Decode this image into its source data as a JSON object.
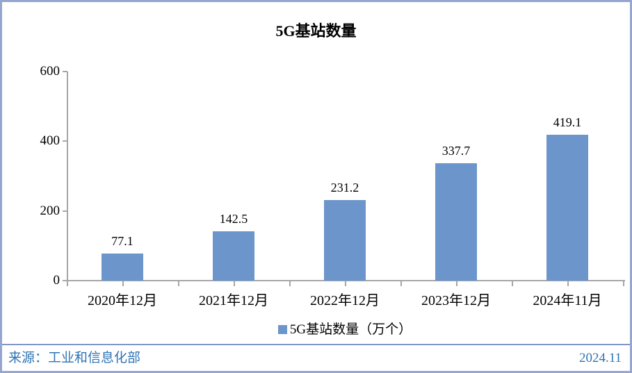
{
  "chart_data": {
    "type": "bar",
    "title": "5G基站数量",
    "categories": [
      "2020年12月",
      "2021年12月",
      "2022年12月",
      "2023年12月",
      "2024年11月"
    ],
    "series": [
      {
        "name": "5G基站数量（万个）",
        "values": [
          77.1,
          142.5,
          231.2,
          337.7,
          419.1
        ]
      }
    ],
    "xlabel": "",
    "ylabel": "",
    "ylim": [
      0,
      600
    ],
    "yticks": [
      0,
      200,
      400,
      600
    ],
    "grid": false,
    "legend_position": "bottom",
    "data_labels": true
  },
  "legend": {
    "swatch_icon": "blue-square-icon"
  },
  "footer": {
    "source": "来源：工业和信息化部",
    "date": "2024.11"
  },
  "colors": {
    "bar": "#6C96CB",
    "axis": "#A6A6A6",
    "border": "#95A5CF",
    "divider": "#7E97C8",
    "footer_text": "#2E74B5"
  }
}
